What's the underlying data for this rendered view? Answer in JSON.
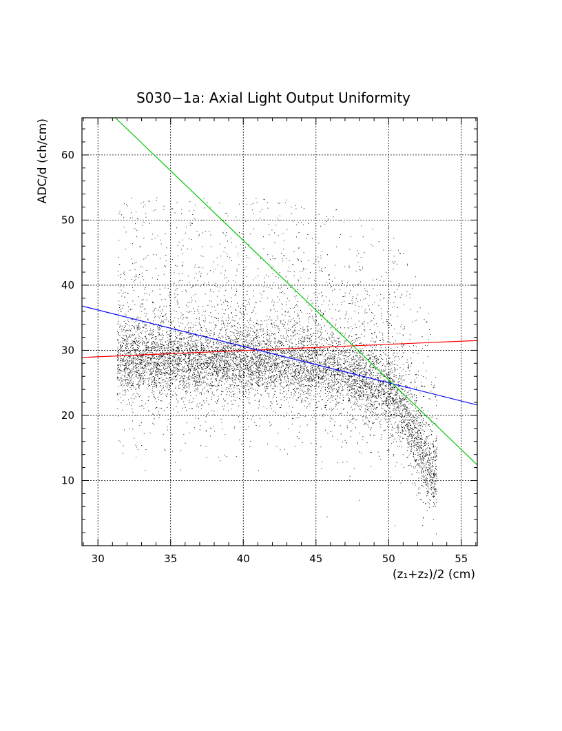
{
  "chart_data": {
    "type": "scatter",
    "title": "S030−1a: Axial Light Output Uniformity",
    "xlabel": "(z₁+z₂)/2 (cm)",
    "ylabel": "ADC/d (ch/cm)",
    "xlim": [
      28.9,
      56.1
    ],
    "ylim": [
      0,
      65.7
    ],
    "x_ticks": [
      30,
      35,
      40,
      45,
      50,
      55
    ],
    "y_ticks": [
      10,
      20,
      30,
      40,
      50,
      60
    ],
    "grid": true,
    "legend": "none",
    "scatter_color": "#000000",
    "scatter_density_profile": {
      "x_range": [
        31.3,
        53.3
      ],
      "core_band": {
        "x": [
          32,
          35,
          40,
          45,
          48,
          50,
          51,
          52,
          53
        ],
        "y_center": [
          28.5,
          28.5,
          28.5,
          28,
          25.5,
          24,
          21,
          16,
          11
        ]
      },
      "approx_point_count": 9000
    },
    "lines": [
      {
        "color": "#ff0000",
        "x": [
          28.9,
          56.1
        ],
        "y": [
          28.9,
          31.5
        ]
      },
      {
        "color": "#0000ff",
        "x": [
          28.9,
          56.1
        ],
        "y": [
          36.8,
          21.6
        ]
      },
      {
        "color": "#00c800",
        "x": [
          31.2,
          56.1
        ],
        "y": [
          65.7,
          12.4
        ]
      }
    ]
  }
}
